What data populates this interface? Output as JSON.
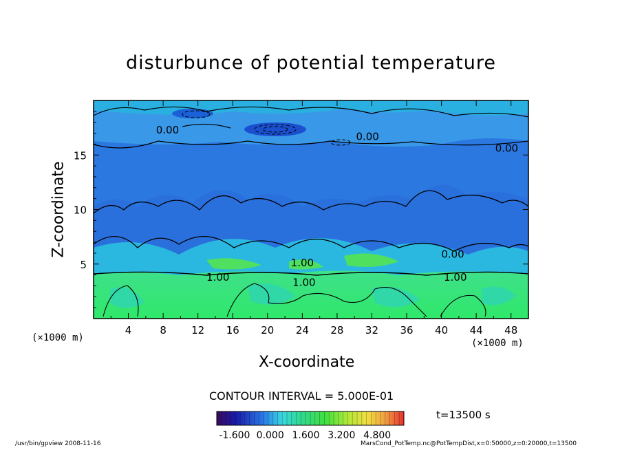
{
  "chart_data": {
    "type": "heatmap",
    "title": "disturbunce of potential temperature",
    "xlabel": "X-coordinate",
    "ylabel": "Z-coordinate",
    "x_unit": "(×1000 m)",
    "z_unit": "(×1000 m)",
    "xlim": [
      0,
      50
    ],
    "ylim": [
      0,
      20
    ],
    "x_ticks": [
      4,
      8,
      12,
      16,
      20,
      24,
      28,
      32,
      36,
      40,
      44,
      48
    ],
    "y_ticks": [
      5,
      10,
      15
    ],
    "contour_labels": [
      {
        "text": "0.00",
        "x": 8.5,
        "z": 17.3
      },
      {
        "text": "0.00",
        "x": 31.5,
        "z": 16.7
      },
      {
        "text": "0.00",
        "x": 47.5,
        "z": 15.6
      },
      {
        "text": "1.00",
        "x": 14.3,
        "z": 3.8
      },
      {
        "text": "0.00",
        "x": 41.3,
        "z": 5.9
      },
      {
        "text": "1.00",
        "x": 24.2,
        "z": 3.3
      },
      {
        "text": "1.00",
        "x": 41.6,
        "z": 3.8
      },
      {
        "text": "1.00",
        "x": 24.0,
        "z": 5.1
      }
    ],
    "contour_interval_text": "CONTOUR INTERVAL = 5.000E-01",
    "colorbar": {
      "ticks": [
        "-1.600",
        "0.000",
        "1.600",
        "3.200",
        "4.800"
      ],
      "min": -2.4,
      "max": 6.0
    },
    "time_label": "t=13500 s",
    "grid": false
  },
  "footer": {
    "left": "/usr/bin/gpview   2008-11-16",
    "right": "MarsCond_PotTemp.nc@PotTempDist,x=0:50000,z=0:20000,t=13500"
  }
}
